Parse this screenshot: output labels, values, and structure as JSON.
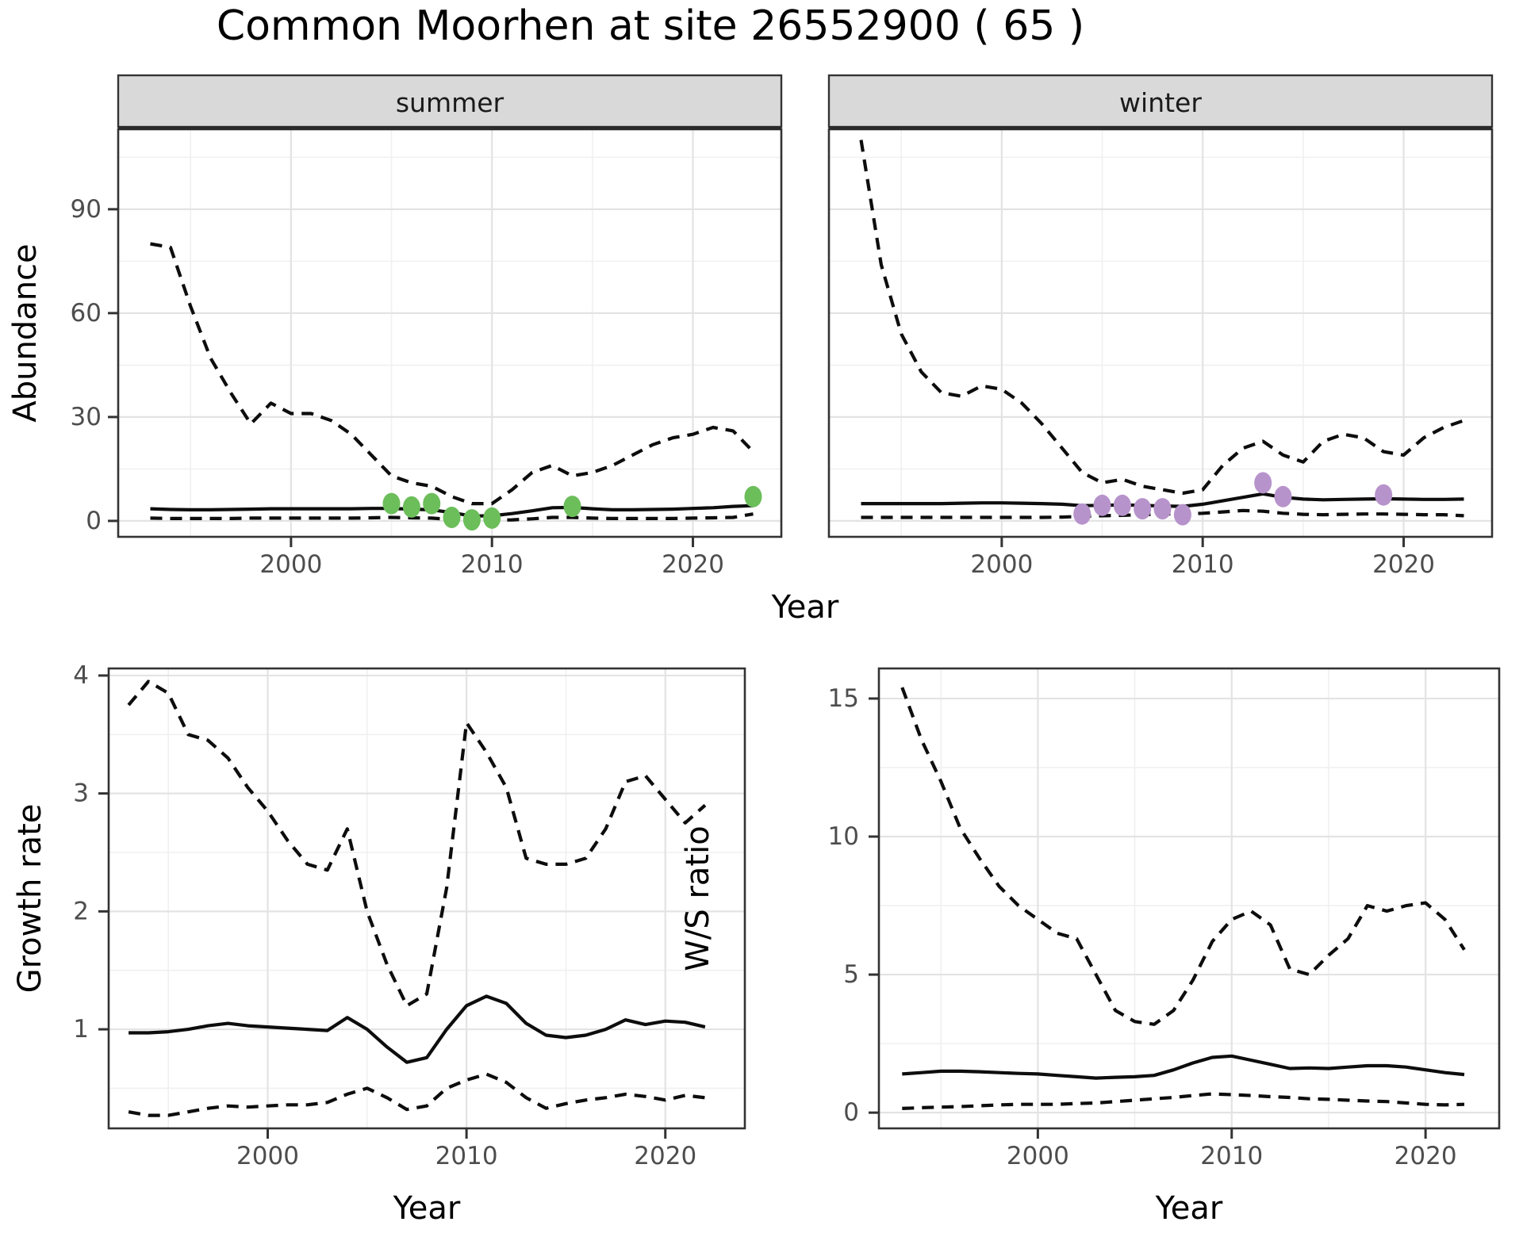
{
  "figure": {
    "title": "Common Moorhen at site 26552900 ( 65 )"
  },
  "colors": {
    "summer_point": "#6CBE5B",
    "winter_point": "#B793CB",
    "line": "#0d0d0d",
    "grid_major": "#E3E3E3",
    "grid_minor": "#F0F0F0",
    "panel_border": "#333333",
    "strip_bg": "#D9D9D9",
    "strip_text": "#1a1a1a",
    "tick_text": "#4D4D4D"
  },
  "chart_data": {
    "type": "line",
    "title": "Common Moorhen at site 26552900 ( 65 )",
    "legend_position": "none",
    "grid": "on",
    "panels": [
      {
        "id": "summer",
        "facet": "summer",
        "xlabel": "Year",
        "ylabel": "Abundance",
        "x_domain": [
          1991.4,
          2024.4
        ],
        "y_domain": [
          -4.6,
          113.1
        ],
        "x_ticks": [
          2000,
          2010,
          2020
        ],
        "x_minor": [
          1995,
          2005,
          2015
        ],
        "y_ticks": [
          0,
          30,
          60,
          90
        ],
        "y_minor": [
          15,
          45,
          75,
          105
        ],
        "series": [
          {
            "name": "upper_ci",
            "style": "dashed",
            "x": [
              1993,
              1994,
              1995,
              1996,
              1997,
              1998,
              1999,
              2000,
              2001,
              2002,
              2003,
              2004,
              2005,
              2006,
              2007,
              2008,
              2009,
              2010,
              2011,
              2012,
              2013,
              2014,
              2015,
              2016,
              2017,
              2018,
              2019,
              2020,
              2021,
              2022,
              2023
            ],
            "y": [
              80,
              79,
              62,
              47,
              37,
              28,
              34,
              31,
              31,
              29,
              25,
              19,
              13,
              11,
              10,
              7,
              5,
              5,
              9,
              14,
              16,
              13,
              14,
              16,
              19,
              22,
              24,
              25,
              27,
              26,
              20
            ]
          },
          {
            "name": "mean",
            "style": "solid",
            "x": [
              1993,
              1994,
              1995,
              1996,
              1997,
              1998,
              1999,
              2000,
              2001,
              2002,
              2003,
              2004,
              2005,
              2006,
              2007,
              2008,
              2009,
              2010,
              2011,
              2012,
              2013,
              2014,
              2015,
              2016,
              2017,
              2018,
              2019,
              2020,
              2021,
              2022,
              2023
            ],
            "y": [
              3.5,
              3.3,
              3.2,
              3.2,
              3.3,
              3.4,
              3.5,
              3.5,
              3.5,
              3.5,
              3.5,
              3.6,
              3.6,
              3.4,
              3.2,
              2.4,
              1.4,
              1.5,
              2.1,
              2.9,
              3.8,
              3.9,
              3.5,
              3.2,
              3.2,
              3.3,
              3.4,
              3.6,
              3.8,
              4.2,
              4.4
            ]
          },
          {
            "name": "lower_ci",
            "style": "dashed",
            "x": [
              1993,
              1994,
              1995,
              1996,
              1997,
              1998,
              1999,
              2000,
              2001,
              2002,
              2003,
              2004,
              2005,
              2006,
              2007,
              2008,
              2009,
              2010,
              2011,
              2012,
              2013,
              2014,
              2015,
              2016,
              2017,
              2018,
              2019,
              2020,
              2021,
              2022,
              2023
            ],
            "y": [
              0.8,
              0.7,
              0.7,
              0.7,
              0.7,
              0.8,
              0.8,
              0.8,
              0.8,
              0.8,
              0.8,
              0.9,
              1.0,
              0.9,
              0.8,
              0.4,
              0.1,
              0.2,
              0.3,
              0.6,
              1.0,
              1.0,
              0.8,
              0.7,
              0.7,
              0.7,
              0.7,
              0.8,
              0.9,
              1.0,
              2.0
            ]
          }
        ],
        "points": {
          "color_key": "summer_point",
          "x": [
            2005,
            2006,
            2007,
            2008,
            2009,
            2010,
            2014,
            2023
          ],
          "y": [
            5,
            4,
            5,
            1,
            0.3,
            0.8,
            4.2,
            7
          ]
        }
      },
      {
        "id": "winter",
        "facet": "winter",
        "xlabel": "Year",
        "ylabel": "Abundance",
        "x_domain": [
          1991.4,
          2024.4
        ],
        "y_domain": [
          -4.6,
          113.1
        ],
        "x_ticks": [
          2000,
          2010,
          2020
        ],
        "x_minor": [
          1995,
          2005,
          2015
        ],
        "y_ticks": [
          0,
          30,
          60,
          90
        ],
        "y_minor": [
          15,
          45,
          75,
          105
        ],
        "series": [
          {
            "name": "upper_ci",
            "style": "dashed",
            "x": [
              1993,
              1994,
              1995,
              1996,
              1997,
              1998,
              1999,
              2000,
              2001,
              2002,
              2003,
              2004,
              2005,
              2006,
              2007,
              2008,
              2009,
              2010,
              2011,
              2012,
              2013,
              2014,
              2015,
              2016,
              2017,
              2018,
              2019,
              2020,
              2021,
              2022,
              2023
            ],
            "y": [
              110,
              74,
              54,
              43,
              37,
              36,
              39,
              38,
              34,
              28,
              21,
              14,
              11,
              12,
              10,
              9,
              8,
              9,
              16,
              21,
              23,
              19,
              17,
              23,
              25,
              24,
              20,
              19,
              24,
              27,
              29
            ]
          },
          {
            "name": "mean",
            "style": "solid",
            "x": [
              1993,
              1994,
              1995,
              1996,
              1997,
              1998,
              1999,
              2000,
              2001,
              2002,
              2003,
              2004,
              2005,
              2006,
              2007,
              2008,
              2009,
              2010,
              2011,
              2012,
              2013,
              2014,
              2015,
              2016,
              2017,
              2018,
              2019,
              2020,
              2021,
              2022,
              2023
            ],
            "y": [
              5,
              5,
              5,
              5,
              5,
              5.1,
              5.2,
              5.2,
              5.1,
              5,
              4.8,
              4.4,
              4.5,
              4.6,
              4.5,
              4.3,
              4.2,
              4.8,
              5.8,
              6.8,
              7.8,
              6.8,
              6.3,
              6.1,
              6.2,
              6.3,
              6.4,
              6.3,
              6.2,
              6.2,
              6.3
            ]
          },
          {
            "name": "lower_ci",
            "style": "dashed",
            "x": [
              1993,
              1994,
              1995,
              1996,
              1997,
              1998,
              1999,
              2000,
              2001,
              2002,
              2003,
              2004,
              2005,
              2006,
              2007,
              2008,
              2009,
              2010,
              2011,
              2012,
              2013,
              2014,
              2015,
              2016,
              2017,
              2018,
              2019,
              2020,
              2021,
              2022,
              2023
            ],
            "y": [
              1,
              1,
              1,
              1,
              1,
              1,
              1,
              1,
              1,
              1,
              1.1,
              1.3,
              1.5,
              1.6,
              1.8,
              2,
              2,
              2.2,
              2.6,
              3,
              2.8,
              2.2,
              1.9,
              1.8,
              1.9,
              2,
              2,
              1.9,
              1.8,
              1.8,
              1.5
            ]
          }
        ],
        "points": {
          "color_key": "winter_point",
          "x": [
            2004,
            2005,
            2006,
            2007,
            2008,
            2009,
            2013,
            2014,
            2019
          ],
          "y": [
            2,
            4.5,
            4.5,
            3.5,
            3.5,
            1.8,
            11,
            7,
            7.5
          ]
        }
      },
      {
        "id": "growth",
        "facet": null,
        "xlabel": "Year",
        "ylabel": "Growth rate",
        "x_domain": [
          1992,
          2024
        ],
        "y_domain": [
          0.16,
          4.06
        ],
        "x_ticks": [
          2000,
          2010,
          2020
        ],
        "x_minor": [
          1995,
          2005,
          2015
        ],
        "y_ticks": [
          1,
          2,
          3,
          4
        ],
        "y_minor": [
          0.5,
          1.5,
          2.5,
          3.5
        ],
        "series": [
          {
            "name": "upper_ci",
            "style": "dashed",
            "x": [
              1993,
              1994,
              1995,
              1996,
              1997,
              1998,
              1999,
              2000,
              2001,
              2002,
              2003,
              2004,
              2005,
              2006,
              2007,
              2008,
              2009,
              2010,
              2011,
              2012,
              2013,
              2014,
              2015,
              2016,
              2017,
              2018,
              2019,
              2020,
              2021,
              2022
            ],
            "y": [
              3.75,
              3.95,
              3.85,
              3.5,
              3.45,
              3.3,
              3.05,
              2.85,
              2.6,
              2.4,
              2.35,
              2.7,
              2.0,
              1.55,
              1.2,
              1.3,
              2.2,
              3.6,
              3.35,
              3.05,
              2.45,
              2.4,
              2.4,
              2.45,
              2.7,
              3.1,
              3.15,
              2.95,
              2.75,
              2.9
            ]
          },
          {
            "name": "mean",
            "style": "solid",
            "x": [
              1993,
              1994,
              1995,
              1996,
              1997,
              1998,
              1999,
              2000,
              2001,
              2002,
              2003,
              2004,
              2005,
              2006,
              2007,
              2008,
              2009,
              2010,
              2011,
              2012,
              2013,
              2014,
              2015,
              2016,
              2017,
              2018,
              2019,
              2020,
              2021,
              2022
            ],
            "y": [
              0.97,
              0.97,
              0.98,
              1.0,
              1.03,
              1.05,
              1.03,
              1.02,
              1.01,
              1.0,
              0.99,
              1.1,
              1.0,
              0.85,
              0.72,
              0.76,
              1.0,
              1.2,
              1.28,
              1.22,
              1.05,
              0.95,
              0.93,
              0.95,
              1.0,
              1.08,
              1.04,
              1.07,
              1.06,
              1.02
            ]
          },
          {
            "name": "lower_ci",
            "style": "dashed",
            "x": [
              1993,
              1994,
              1995,
              1996,
              1997,
              1998,
              1999,
              2000,
              2001,
              2002,
              2003,
              2004,
              2005,
              2006,
              2007,
              2008,
              2009,
              2010,
              2011,
              2012,
              2013,
              2014,
              2015,
              2016,
              2017,
              2018,
              2019,
              2020,
              2021,
              2022
            ],
            "y": [
              0.3,
              0.27,
              0.27,
              0.3,
              0.33,
              0.35,
              0.34,
              0.35,
              0.36,
              0.36,
              0.38,
              0.45,
              0.5,
              0.42,
              0.32,
              0.35,
              0.5,
              0.57,
              0.62,
              0.55,
              0.42,
              0.33,
              0.37,
              0.4,
              0.42,
              0.45,
              0.43,
              0.4,
              0.44,
              0.42
            ]
          }
        ],
        "points": null
      },
      {
        "id": "ws",
        "facet": null,
        "xlabel": "Year",
        "ylabel": "W/S ratio",
        "x_domain": [
          1991.8,
          2023.8
        ],
        "y_domain": [
          -0.57,
          16.09
        ],
        "x_ticks": [
          2000,
          2010,
          2020
        ],
        "x_minor": [
          1995,
          2005,
          2015
        ],
        "y_ticks": [
          0,
          5,
          10,
          15
        ],
        "y_minor": [
          2.5,
          7.5,
          12.5
        ],
        "series": [
          {
            "name": "upper_ci",
            "style": "dashed",
            "x": [
              1993,
              1994,
              1995,
              1996,
              1997,
              1998,
              1999,
              2000,
              2001,
              2002,
              2003,
              2004,
              2005,
              2006,
              2007,
              2008,
              2009,
              2010,
              2011,
              2012,
              2013,
              2014,
              2015,
              2016,
              2017,
              2018,
              2019,
              2020,
              2021,
              2022
            ],
            "y": [
              15.4,
              13.5,
              12.0,
              10.3,
              9.2,
              8.2,
              7.5,
              7.0,
              6.5,
              6.3,
              5.0,
              3.7,
              3.3,
              3.2,
              3.7,
              4.8,
              6.2,
              7.0,
              7.3,
              6.8,
              5.2,
              5.0,
              5.7,
              6.3,
              7.5,
              7.3,
              7.5,
              7.6,
              7.0,
              5.9
            ]
          },
          {
            "name": "mean",
            "style": "solid",
            "x": [
              1993,
              1994,
              1995,
              1996,
              1997,
              1998,
              1999,
              2000,
              2001,
              2002,
              2003,
              2004,
              2005,
              2006,
              2007,
              2008,
              2009,
              2010,
              2011,
              2012,
              2013,
              2014,
              2015,
              2016,
              2017,
              2018,
              2019,
              2020,
              2021,
              2022
            ],
            "y": [
              1.4,
              1.45,
              1.5,
              1.5,
              1.48,
              1.45,
              1.42,
              1.4,
              1.35,
              1.3,
              1.25,
              1.28,
              1.3,
              1.35,
              1.55,
              1.8,
              2.0,
              2.05,
              1.9,
              1.75,
              1.6,
              1.62,
              1.6,
              1.65,
              1.7,
              1.7,
              1.65,
              1.55,
              1.45,
              1.38
            ]
          },
          {
            "name": "lower_ci",
            "style": "dashed",
            "x": [
              1993,
              1994,
              1995,
              1996,
              1997,
              1998,
              1999,
              2000,
              2001,
              2002,
              2003,
              2004,
              2005,
              2006,
              2007,
              2008,
              2009,
              2010,
              2011,
              2012,
              2013,
              2014,
              2015,
              2016,
              2017,
              2018,
              2019,
              2020,
              2021,
              2022
            ],
            "y": [
              0.15,
              0.18,
              0.2,
              0.22,
              0.25,
              0.28,
              0.3,
              0.3,
              0.3,
              0.33,
              0.35,
              0.4,
              0.45,
              0.5,
              0.55,
              0.62,
              0.68,
              0.65,
              0.62,
              0.58,
              0.55,
              0.5,
              0.48,
              0.45,
              0.42,
              0.4,
              0.35,
              0.3,
              0.28,
              0.3
            ]
          }
        ],
        "points": null
      }
    ]
  }
}
